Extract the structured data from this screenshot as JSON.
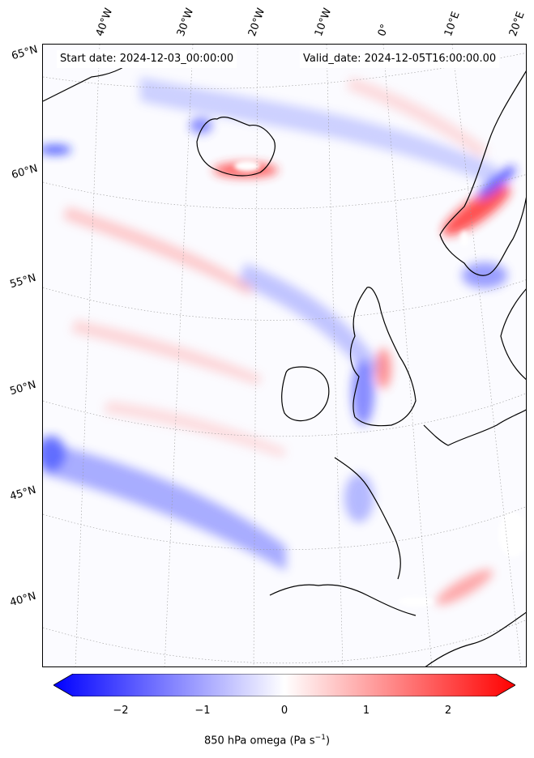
{
  "header": {
    "start_date": "Start date: 2024-12-03_00:00:00",
    "valid_date": "Valid_date: 2024-12-05T16:00:00.00"
  },
  "lon_labels": [
    "40°W",
    "30°W",
    "20°W",
    "10°W",
    "0°",
    "10°E",
    "20°E"
  ],
  "lat_labels": [
    "65°N",
    "60°N",
    "55°N",
    "50°N",
    "45°N",
    "40°N"
  ],
  "colorbar": {
    "label": "850 hPa omega (Pa s",
    "label_exp": "−1",
    "label_end": ")",
    "ticks": [
      "−2",
      "−1",
      "0",
      "1",
      "2"
    ],
    "vmin": -2.6,
    "vmax": 2.6,
    "tick_values": [
      -2,
      -1,
      0,
      1,
      2
    ],
    "colormap": "bwr",
    "colors": {
      "min": "#0000ff",
      "mid": "#ffffff",
      "max": "#ff0000"
    }
  },
  "map": {
    "field": "850 hPa omega",
    "projection": "lambert-conformal",
    "coastline_color": "#000000",
    "gridline_style": "dotted-gray"
  }
}
